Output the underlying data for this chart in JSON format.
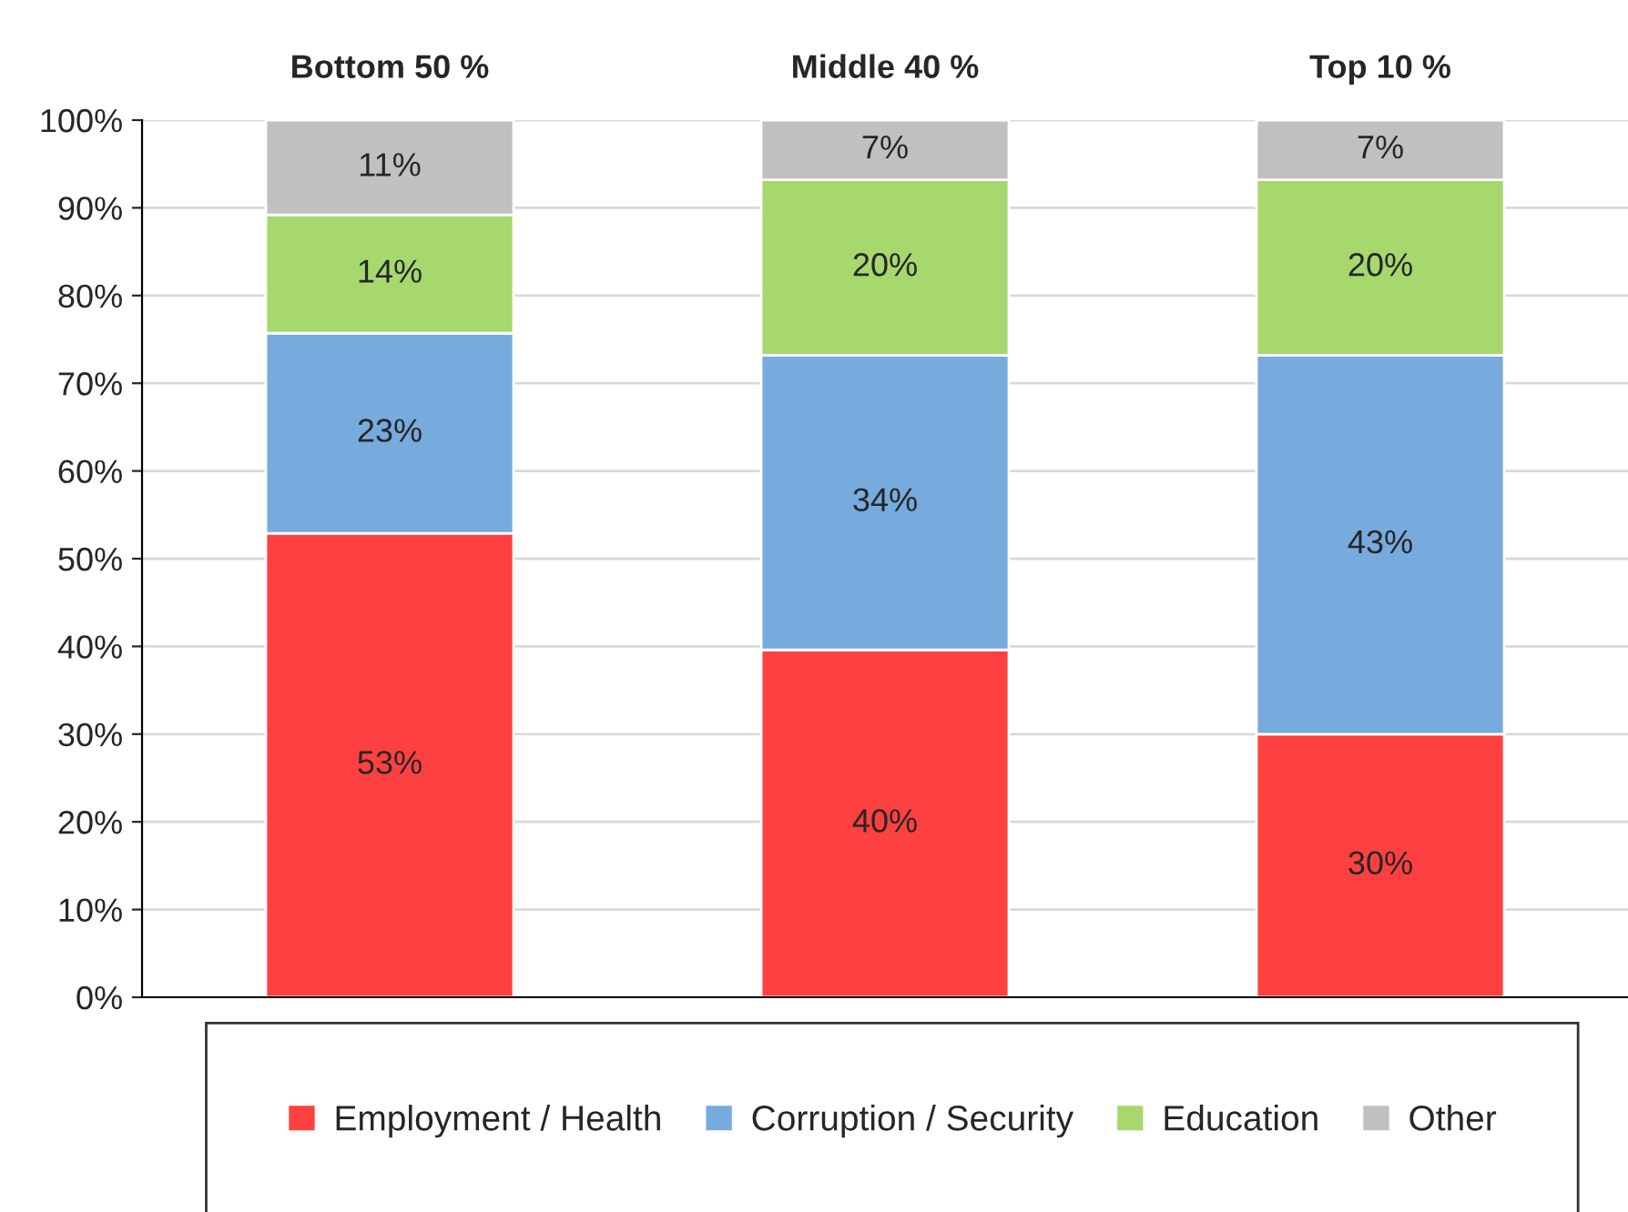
{
  "chart_data": {
    "type": "bar",
    "stacked": true,
    "categories": [
      "Bottom 50 %",
      "Middle 40 %",
      "Top 10 %"
    ],
    "series": [
      {
        "name": "Employment / Health",
        "color": "#ff4040",
        "values": [
          52.9,
          39.6,
          30.0
        ],
        "value_labels": [
          "53%",
          "40%",
          "30%"
        ]
      },
      {
        "name": "Corruption / Security",
        "color": "#77aadd",
        "values": [
          22.8,
          33.6,
          43.2
        ],
        "value_labels": [
          "23%",
          "34%",
          "43%"
        ]
      },
      {
        "name": "Education",
        "color": "#a6d86e",
        "values": [
          13.5,
          20.0,
          20.0
        ],
        "value_labels": [
          "14%",
          "20%",
          "20%"
        ]
      },
      {
        "name": "Other",
        "color": "#c0c0c0",
        "values": [
          10.8,
          6.8,
          6.8
        ],
        "value_labels": [
          "11%",
          "7%",
          "7%"
        ]
      }
    ],
    "ylim": [
      0,
      100
    ],
    "yticks": [
      {
        "value": 0,
        "label": "0%"
      },
      {
        "value": 10,
        "label": "10%"
      },
      {
        "value": 20,
        "label": "20%"
      },
      {
        "value": 30,
        "label": "30%"
      },
      {
        "value": 40,
        "label": "40%"
      },
      {
        "value": 50,
        "label": "50%"
      },
      {
        "value": 60,
        "label": "60%"
      },
      {
        "value": 70,
        "label": "70%"
      },
      {
        "value": 80,
        "label": "80%"
      },
      {
        "value": 90,
        "label": "90%"
      },
      {
        "value": 100,
        "label": "100%"
      }
    ],
    "grid": "y",
    "legend": "bottom"
  }
}
